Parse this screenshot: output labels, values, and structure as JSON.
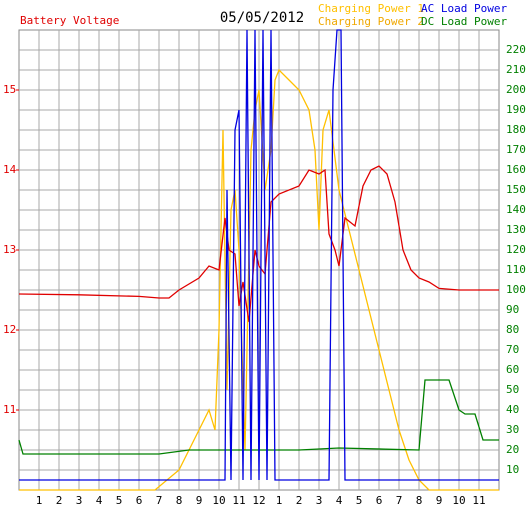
{
  "chart_data": {
    "type": "line",
    "title": "05/05/2012",
    "y_label": "Battery Voltage",
    "y_label_color": "#e00000",
    "xlim": [
      0,
      24
    ],
    "xticks": [
      1,
      2,
      3,
      4,
      5,
      6,
      7,
      8,
      9,
      10,
      11,
      12,
      {
        "value": 13,
        "label": "1"
      },
      {
        "value": 14,
        "label": "2"
      },
      {
        "value": 15,
        "label": "3"
      },
      {
        "value": 16,
        "label": "4"
      },
      {
        "value": 17,
        "label": "5"
      },
      {
        "value": 18,
        "label": "6"
      },
      {
        "value": 19,
        "label": "7"
      },
      {
        "value": 20,
        "label": "8"
      },
      {
        "value": 21,
        "label": "9"
      },
      {
        "value": 22,
        "label": "10"
      },
      {
        "value": 23,
        "label": "11"
      }
    ],
    "ylim": [
      10,
      15.75
    ],
    "yticks": [
      11,
      12,
      13,
      14,
      15
    ],
    "y2lim": [
      0,
      230
    ],
    "y2ticks": [
      10,
      20,
      30,
      40,
      50,
      60,
      70,
      80,
      90,
      100,
      110,
      120,
      130,
      140,
      150,
      160,
      170,
      180,
      190,
      200,
      210,
      220
    ],
    "grid": true,
    "series": [
      {
        "name": "Battery Voltage",
        "color": "#e00000",
        "axis": "y",
        "x": [
          0,
          3,
          6,
          7,
          7.5,
          8,
          9,
          9.5,
          10,
          10.3,
          10.5,
          10.8,
          11,
          11.2,
          11.5,
          11.8,
          12,
          12.3,
          12.6,
          13,
          14,
          14.5,
          15,
          15.3,
          15.5,
          15.8,
          16,
          16.3,
          16.8,
          17.2,
          17.6,
          18,
          18.4,
          18.8,
          19.2,
          19.6,
          20,
          20.5,
          21,
          22,
          23,
          24
        ],
        "values": [
          12.45,
          12.44,
          12.42,
          12.4,
          12.4,
          12.5,
          12.65,
          12.8,
          12.75,
          13.4,
          13.0,
          12.95,
          12.3,
          12.6,
          12.1,
          13.0,
          12.8,
          12.7,
          13.6,
          13.7,
          13.8,
          14.0,
          13.95,
          14.0,
          13.2,
          13.0,
          12.8,
          13.4,
          13.3,
          13.8,
          14.0,
          14.05,
          13.95,
          13.6,
          13.0,
          12.75,
          12.65,
          12.6,
          12.52,
          12.5,
          12.5,
          12.5
        ]
      },
      {
        "name": "Charging Power 1",
        "color": "#ffc000",
        "axis": "y2",
        "x": [
          0,
          6.8,
          8,
          8.5,
          9,
          9.5,
          9.8,
          10,
          10.2,
          10.4,
          10.6,
          10.8,
          11,
          11.3,
          11.6,
          11.8,
          12,
          12.3,
          12.6,
          12.8,
          13,
          13.5,
          14,
          14.5,
          14.8,
          15,
          15.2,
          15.5,
          16,
          16.5,
          17,
          17.5,
          18,
          18.5,
          19,
          19.5,
          20,
          20.5,
          24
        ],
        "values": [
          0,
          0,
          10,
          20,
          30,
          40,
          30,
          80,
          180,
          50,
          140,
          150,
          120,
          20,
          170,
          190,
          200,
          150,
          170,
          205,
          210,
          205,
          200,
          190,
          170,
          130,
          180,
          190,
          150,
          130,
          110,
          90,
          70,
          50,
          30,
          15,
          5,
          0,
          0
        ]
      },
      {
        "name": "Charging Power 2",
        "color": "#f0a800",
        "axis": "y2"
      },
      {
        "name": "AC Load Power",
        "color": "#0000e0",
        "axis": "y2",
        "x": [
          0,
          10.3,
          10.4,
          10.6,
          10.8,
          11,
          11.2,
          11.4,
          11.6,
          11.8,
          12,
          12.2,
          12.4,
          12.6,
          12.8,
          15.5,
          15.7,
          15.9,
          16.1,
          16.3,
          24
        ],
        "values": [
          5,
          5,
          150,
          5,
          180,
          190,
          5,
          230,
          5,
          230,
          5,
          230,
          5,
          230,
          5,
          5,
          200,
          230,
          230,
          5,
          5
        ]
      },
      {
        "name": "DC Load Power",
        "color": "#008000",
        "axis": "y2",
        "x": [
          0,
          0.2,
          7,
          8.5,
          10,
          14,
          16,
          20,
          20.3,
          21.5,
          22,
          22.3,
          22.8,
          23.2,
          24
        ],
        "values": [
          25,
          18,
          18,
          20,
          20,
          20,
          21,
          20,
          55,
          55,
          40,
          38,
          38,
          25,
          25
        ]
      }
    ]
  }
}
